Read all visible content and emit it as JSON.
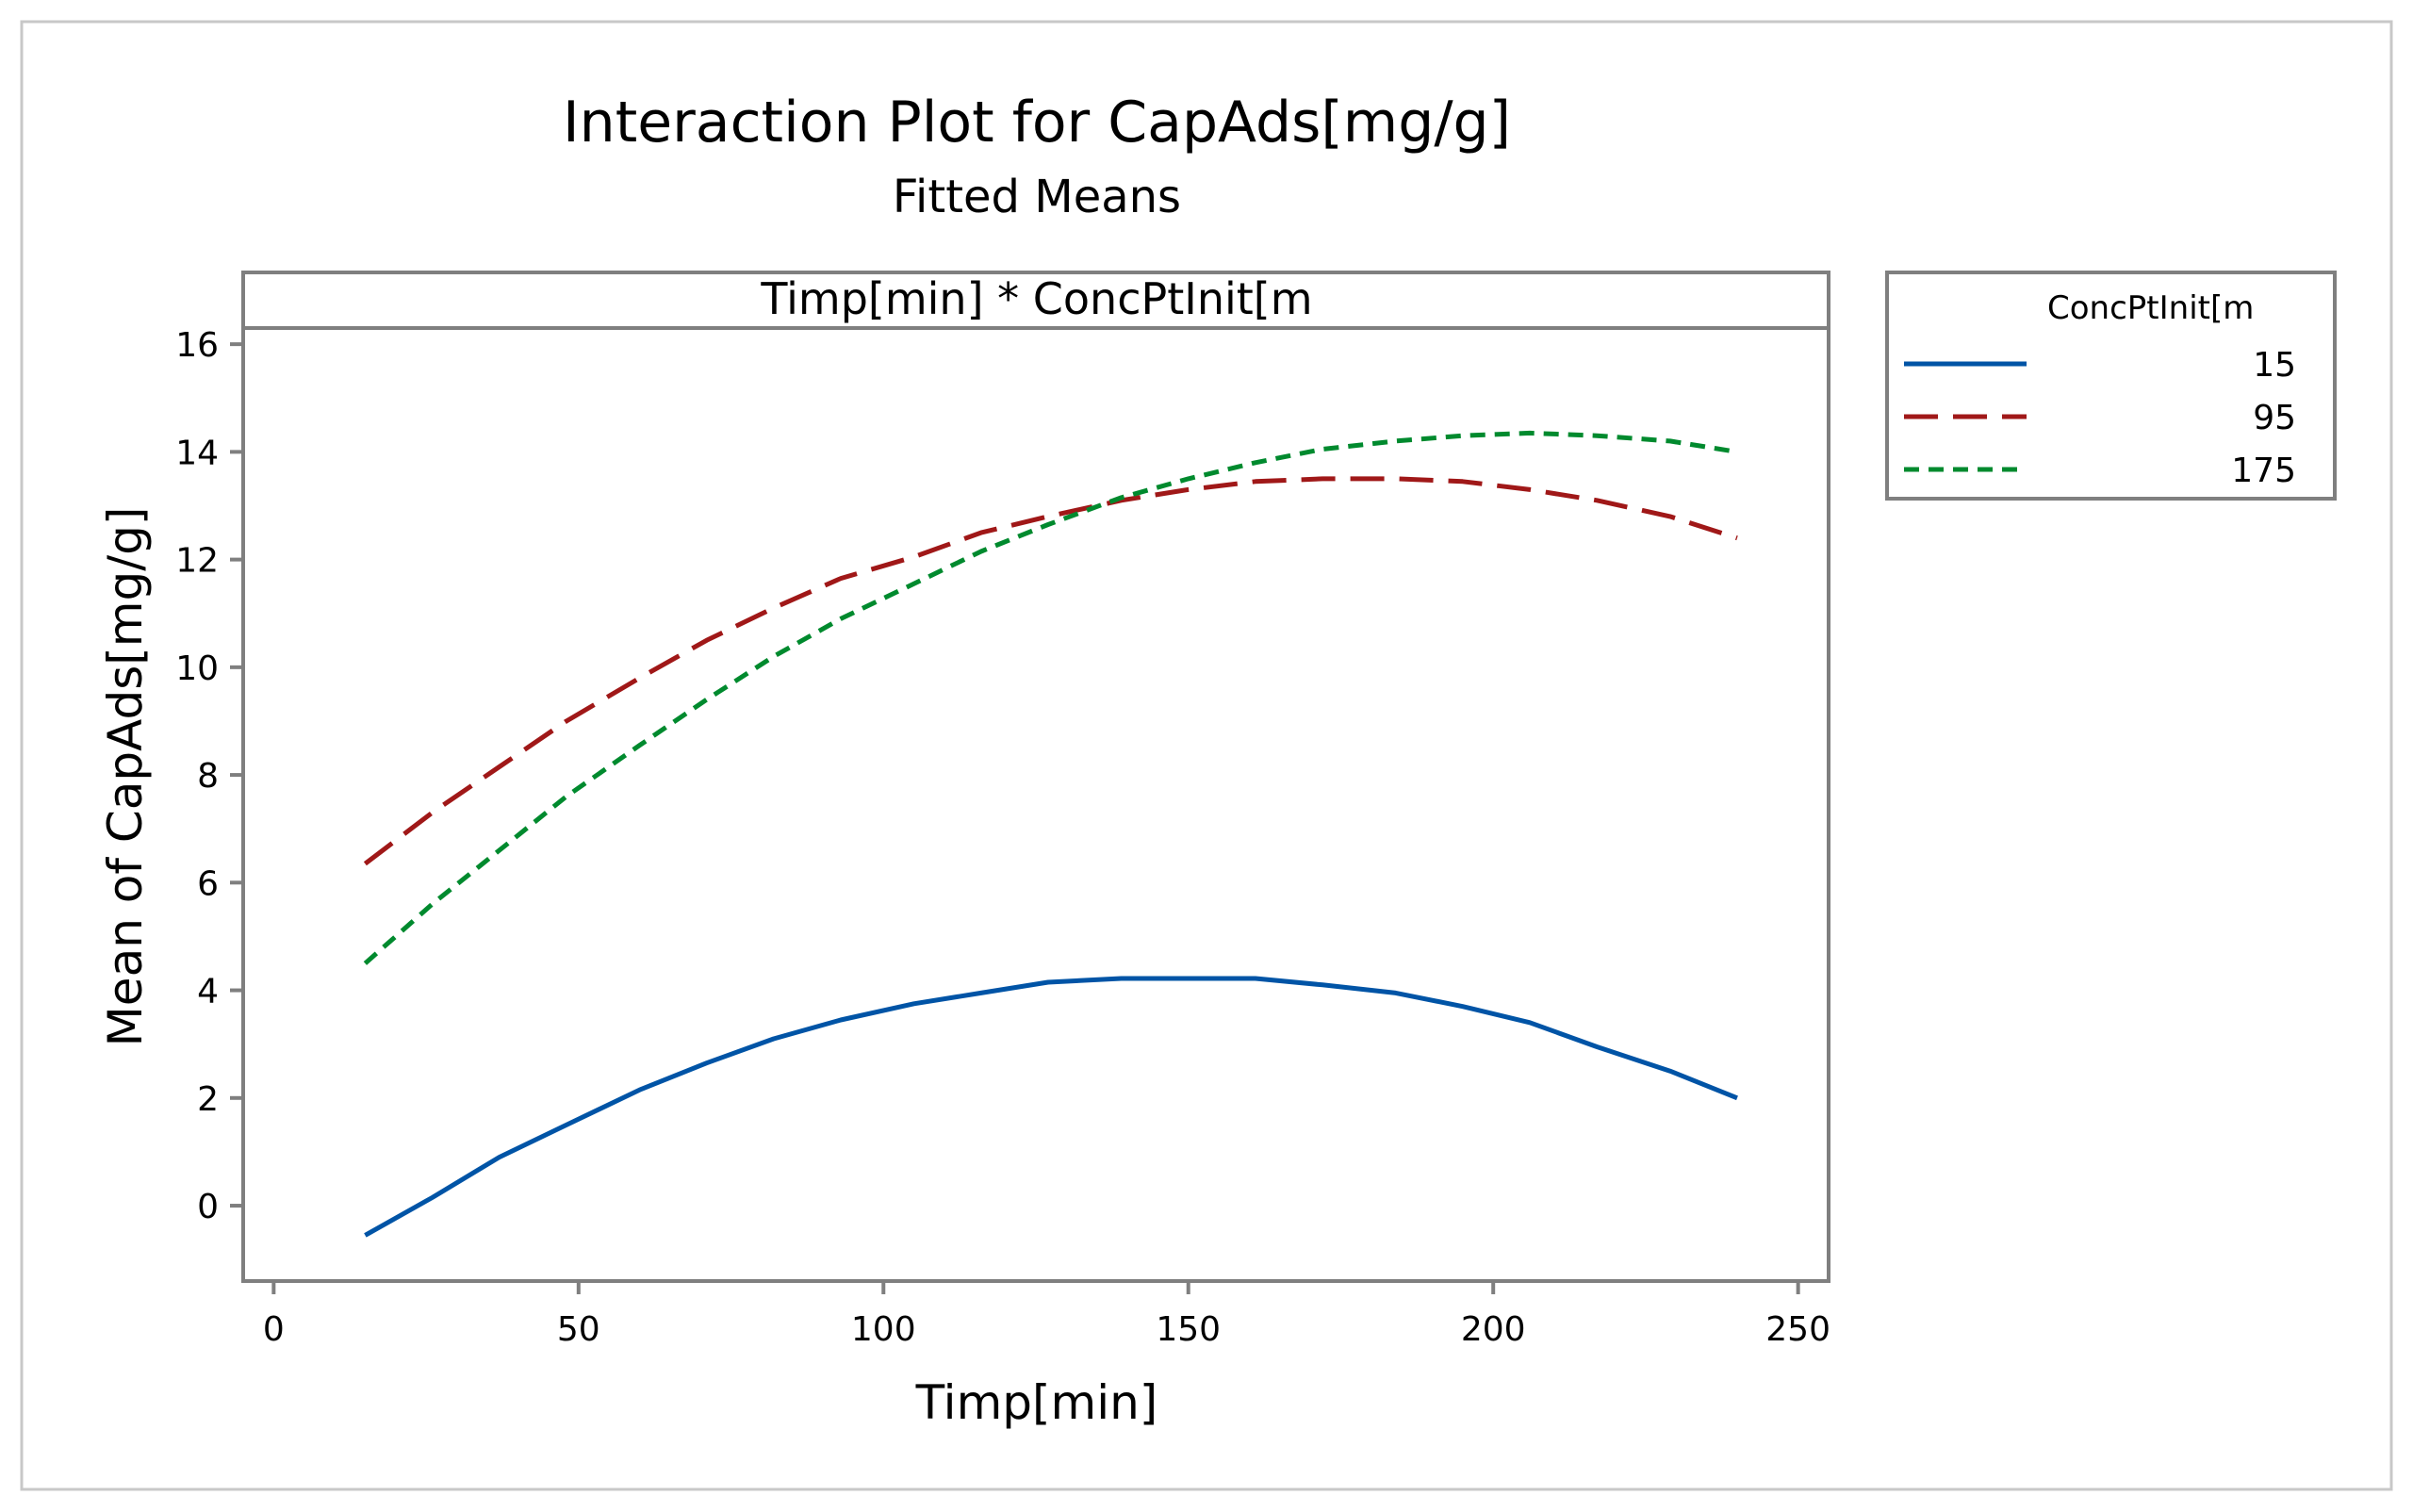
{
  "chart_data": {
    "type": "line",
    "title": "Interaction Plot for CapAds[mg/g]",
    "subtitle": "Fitted Means",
    "panel_label": "Timp[min] * ConcPtInit[m",
    "xlabel": "Timp[min]",
    "ylabel": "Mean of CapAds[mg/g]",
    "xlim": [
      -5,
      255
    ],
    "ylim": [
      -1.4,
      16.3
    ],
    "xticks": [
      0,
      50,
      100,
      150,
      200,
      250
    ],
    "yticks": [
      0,
      2,
      4,
      6,
      8,
      10,
      12,
      14,
      16
    ],
    "legend_title": "ConcPtInit[m",
    "legend_position": "right",
    "grid": false,
    "series": [
      {
        "name": "15",
        "color": "#0054a6",
        "dash": "solid",
        "x": [
          15,
          26,
          37,
          48,
          60,
          71,
          82,
          93,
          105,
          116,
          127,
          139,
          150,
          161,
          172,
          184,
          195,
          206,
          217,
          229,
          240
        ],
        "values": [
          -0.55,
          0.15,
          0.9,
          1.5,
          2.15,
          2.65,
          3.1,
          3.45,
          3.75,
          3.95,
          4.15,
          4.22,
          4.22,
          4.22,
          4.1,
          3.95,
          3.7,
          3.4,
          2.95,
          2.5,
          2.0
        ]
      },
      {
        "name": "95",
        "color": "#a01818",
        "dash": "long-dash",
        "x": [
          15,
          26,
          37,
          48,
          60,
          71,
          82,
          93,
          105,
          116,
          127,
          139,
          150,
          161,
          172,
          184,
          195,
          206,
          217,
          229,
          240
        ],
        "values": [
          6.35,
          7.3,
          8.15,
          9.0,
          9.8,
          10.5,
          11.1,
          11.65,
          12.05,
          12.5,
          12.8,
          13.1,
          13.3,
          13.45,
          13.5,
          13.5,
          13.45,
          13.3,
          13.1,
          12.8,
          12.4
        ]
      },
      {
        "name": "175",
        "color": "#008a2e",
        "dash": "short-dash",
        "x": [
          15,
          26,
          37,
          48,
          60,
          71,
          82,
          93,
          105,
          116,
          127,
          139,
          150,
          161,
          172,
          184,
          195,
          206,
          217,
          229,
          240
        ],
        "values": [
          4.5,
          5.6,
          6.6,
          7.6,
          8.55,
          9.4,
          10.2,
          10.9,
          11.55,
          12.15,
          12.65,
          13.15,
          13.5,
          13.8,
          14.05,
          14.2,
          14.3,
          14.35,
          14.3,
          14.2,
          14.0
        ]
      }
    ]
  }
}
